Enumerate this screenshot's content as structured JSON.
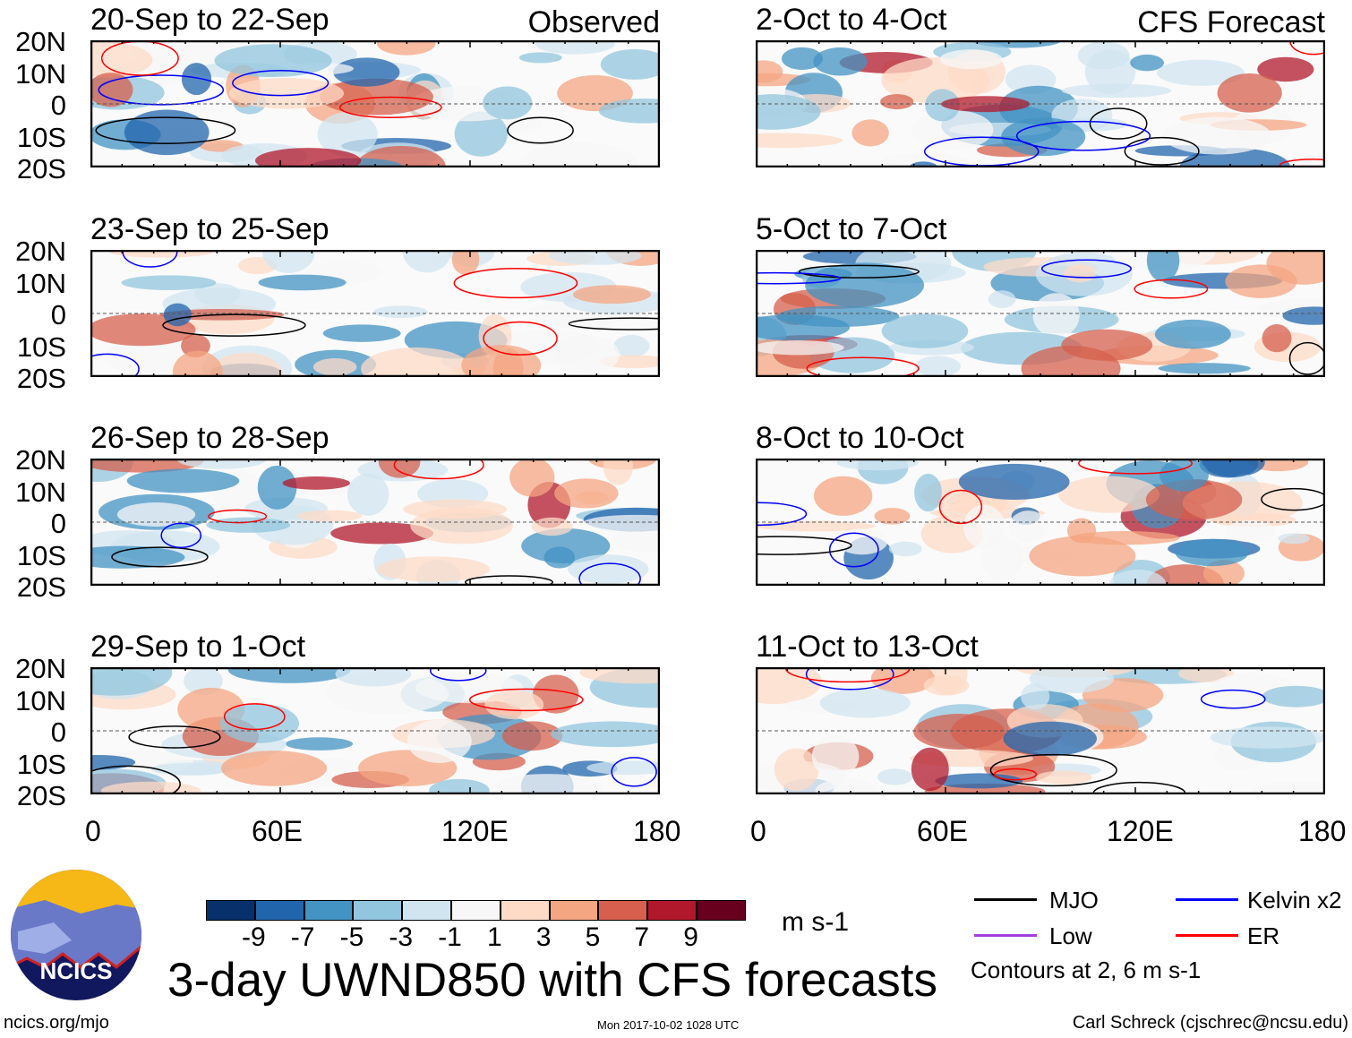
{
  "chart_data": {
    "type": "heatmap",
    "title": "3-day UWND850 with CFS forecasts",
    "variable": "850 hPa zonal wind anomaly",
    "units": "m s-1",
    "x_ticks": [
      "0",
      "60E",
      "120E",
      "180"
    ],
    "x_range": [
      0,
      180
    ],
    "y_ticks": [
      "20N",
      "10N",
      "0",
      "10S",
      "20S"
    ],
    "y_range": [
      -20,
      20
    ],
    "panels": [
      {
        "label": "20-Sep to 22-Sep",
        "group": "Observed"
      },
      {
        "label": "2-Oct to 4-Oct",
        "group": "CFS Forecast"
      },
      {
        "label": "23-Sep to 25-Sep",
        "group": "Observed"
      },
      {
        "label": "5-Oct to 7-Oct",
        "group": "CFS Forecast"
      },
      {
        "label": "26-Sep to 28-Sep",
        "group": "Observed"
      },
      {
        "label": "8-Oct to 10-Oct",
        "group": "CFS Forecast"
      },
      {
        "label": "29-Sep to 1-Oct",
        "group": "Observed"
      },
      {
        "label": "11-Oct to 13-Oct",
        "group": "CFS Forecast"
      }
    ],
    "group_labels": {
      "observed": "Observed",
      "forecast": "CFS Forecast"
    },
    "colorbar": {
      "ticks": [
        "-9",
        "-7",
        "-5",
        "-3",
        "-1",
        "1",
        "3",
        "5",
        "7",
        "9"
      ],
      "colors": [
        "#08306b",
        "#2166ac",
        "#4393c3",
        "#92c5de",
        "#d1e5f0",
        "#f7f7f7",
        "#fddbc7",
        "#f4a582",
        "#d6604d",
        "#b2182b",
        "#67001f"
      ]
    },
    "legend": [
      {
        "label": "MJO",
        "color": "#000000"
      },
      {
        "label": "Kelvin x2",
        "color": "#0000ff"
      },
      {
        "label": "Low",
        "color": "#a040e0"
      },
      {
        "label": "ER",
        "color": "#ff0000"
      }
    ],
    "contour_note": "Contours at 2, 6 m s-1"
  },
  "footer": {
    "logo_text": "NCICS",
    "url": "ncics.org/mjo",
    "timestamp": "Mon 2017-10-02 1028 UTC",
    "credit": "Carl Schreck (cjschrec@ncsu.edu)"
  }
}
